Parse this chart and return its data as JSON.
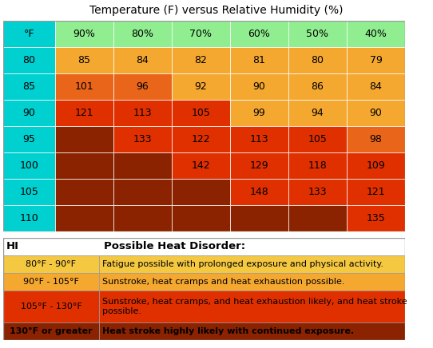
{
  "title": "Temperature (F) versus Relative Humidity (%)",
  "col_headers": [
    "°F",
    "90%",
    "80%",
    "70%",
    "60%",
    "50%",
    "40%"
  ],
  "row_labels": [
    "80",
    "85",
    "90",
    "95",
    "100",
    "105",
    "110"
  ],
  "table_data": [
    [
      "85",
      "84",
      "82",
      "81",
      "80",
      "79"
    ],
    [
      "101",
      "96",
      "92",
      "90",
      "86",
      "84"
    ],
    [
      "121",
      "113",
      "105",
      "99",
      "94",
      "90"
    ],
    [
      "",
      "133",
      "122",
      "113",
      "105",
      "98"
    ],
    [
      "",
      "",
      "142",
      "129",
      "118",
      "109"
    ],
    [
      "",
      "",
      "",
      "148",
      "133",
      "121"
    ],
    [
      "",
      "",
      "",
      "",
      "",
      "135"
    ]
  ],
  "cell_colors": [
    [
      "#F5A830",
      "#F5A830",
      "#F5A830",
      "#F5A830",
      "#F5A830",
      "#F5A830"
    ],
    [
      "#E8651A",
      "#E8651A",
      "#F5A830",
      "#F5A830",
      "#F5A830",
      "#F5A830"
    ],
    [
      "#E03000",
      "#E03000",
      "#E03000",
      "#F5A830",
      "#F5A830",
      "#F5A830"
    ],
    [
      "#8B2200",
      "#E03000",
      "#E03000",
      "#E03000",
      "#E03000",
      "#E8651A"
    ],
    [
      "#8B2200",
      "#8B2200",
      "#E03000",
      "#E03000",
      "#E03000",
      "#E03000"
    ],
    [
      "#8B2200",
      "#8B2200",
      "#8B2200",
      "#E03000",
      "#E03000",
      "#E03000"
    ],
    [
      "#8B2200",
      "#8B2200",
      "#8B2200",
      "#8B2200",
      "#8B2200",
      "#E03000"
    ]
  ],
  "row_label_color": "#00D0D0",
  "header_color": "#90EE90",
  "legend_items": [
    {
      "range": "80°F - 90°F",
      "desc": "Fatigue possible with prolonged exposure and physical activity.",
      "bg": "#F5C842",
      "bold": false
    },
    {
      "range": "90°F - 105°F",
      "desc": "Sunstroke, heat cramps and heat exhaustion possible.",
      "bg": "#F5A830",
      "bold": false
    },
    {
      "range": "105°F - 130°F",
      "desc": "Sunstroke, heat cramps, and heat exhaustion likely, and heat stroke\npossible.",
      "bg": "#E03000",
      "bold": false
    },
    {
      "range": "130°F or greater",
      "desc": "Heat stroke highly likely with continued exposure.",
      "bg": "#8B2200",
      "bold": true
    }
  ],
  "fig_width": 5.42,
  "fig_height": 4.36,
  "fig_dpi": 100,
  "fig_bg": "#ffffff",
  "border_color": "#999999"
}
